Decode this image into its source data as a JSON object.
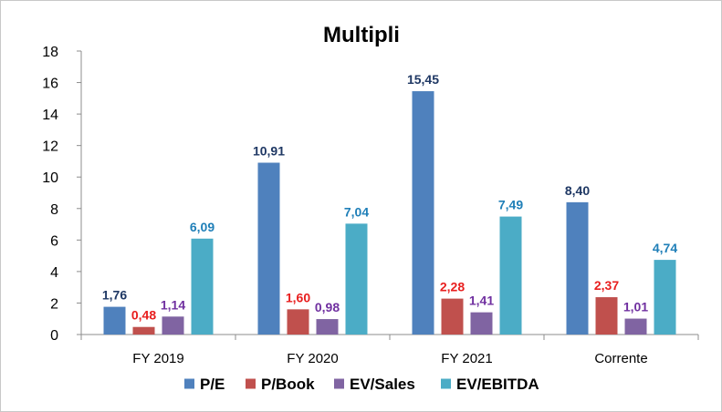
{
  "chart_data": {
    "type": "bar",
    "title": "Multipli",
    "xlabel": "",
    "ylabel": "",
    "categories": [
      "FY 2019",
      "FY 2020",
      "FY 2021",
      "Corrente"
    ],
    "ylim": [
      0,
      18
    ],
    "yticks": [
      0,
      2,
      4,
      6,
      8,
      10,
      12,
      14,
      16,
      18
    ],
    "grid": false,
    "legend_position": "bottom",
    "decimal_separator": ",",
    "series": [
      {
        "name": "P/E",
        "color": "#4F81BD",
        "label_color": "#1F3864",
        "values": [
          1.76,
          10.91,
          15.45,
          8.4
        ],
        "labels": [
          "1,76",
          "10,91",
          "15,45",
          "8,40"
        ]
      },
      {
        "name": "P/Book",
        "color": "#C0504D",
        "label_color": "#E81E1E",
        "values": [
          0.48,
          1.6,
          2.28,
          2.37
        ],
        "labels": [
          "0,48",
          "1,60",
          "2,28",
          "2,37"
        ]
      },
      {
        "name": "EV/Sales",
        "color": "#8064A2",
        "label_color": "#7030A0",
        "values": [
          1.14,
          0.98,
          1.41,
          1.01
        ],
        "labels": [
          "1,14",
          "0,98",
          "1,41",
          "1,01"
        ]
      },
      {
        "name": "EV/EBITDA",
        "color": "#4BACC6",
        "label_color": "#1F7FB8",
        "values": [
          6.09,
          7.04,
          7.49,
          4.74
        ],
        "labels": [
          "6,09",
          "7,04",
          "7,49",
          "4,74"
        ]
      }
    ]
  }
}
